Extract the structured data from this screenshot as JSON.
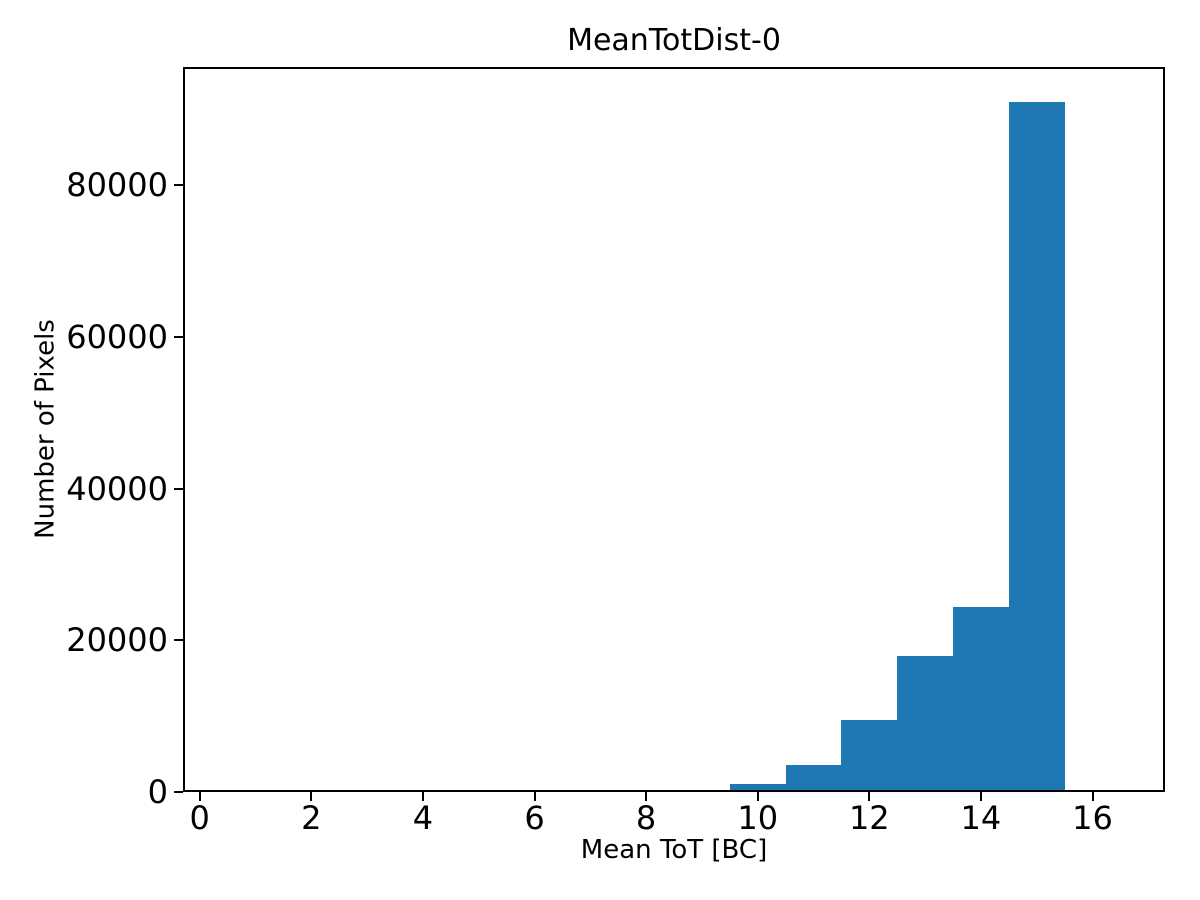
{
  "figure": {
    "title": "MeanTotDist-0",
    "xlabel": "Mean ToT [BC]",
    "ylabel": "Number of Pixels"
  },
  "chart_data": {
    "type": "bar",
    "subtype": "histogram",
    "title": "MeanTotDist-0",
    "xlabel": "Mean ToT [BC]",
    "ylabel": "Number of Pixels",
    "bin_edges": [
      0.5,
      1.5,
      2.5,
      3.5,
      4.5,
      5.5,
      6.5,
      7.5,
      8.5,
      9.5,
      10.5,
      11.5,
      12.5,
      13.5,
      14.5,
      15.5,
      16.5
    ],
    "counts": [
      0,
      0,
      0,
      0,
      0,
      0,
      0,
      0,
      300,
      1000,
      3600,
      9500,
      17900,
      24400,
      91000,
      0
    ],
    "bar_color": "#1f77b4",
    "axis_color": "#000000",
    "background_color": "#ffffff",
    "xlim": [
      -0.3,
      17.3
    ],
    "ylim": [
      0,
      95600
    ],
    "x_ticks": [
      0,
      2,
      4,
      6,
      8,
      10,
      12,
      14,
      16
    ],
    "x_tick_labels": [
      "0",
      "2",
      "4",
      "6",
      "8",
      "10",
      "12",
      "14",
      "16"
    ],
    "y_ticks": [
      0,
      20000,
      40000,
      60000,
      80000
    ],
    "y_tick_labels": [
      "0",
      "20000",
      "40000",
      "60000",
      "80000"
    ],
    "grid": false,
    "legend": null
  }
}
